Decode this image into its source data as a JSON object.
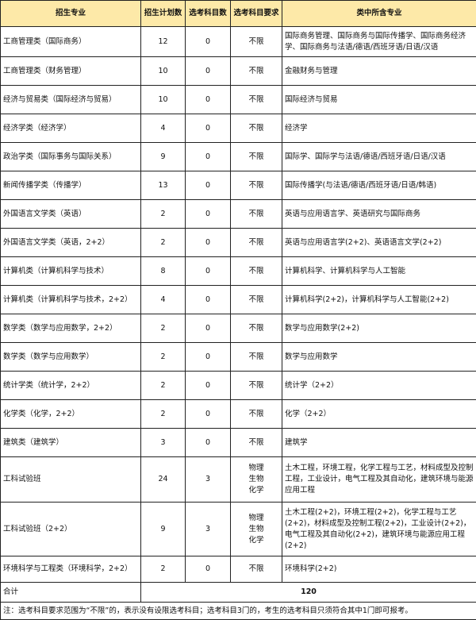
{
  "header": [
    "招生专业",
    "招生计划数",
    "选考科目数",
    "选考科目要求",
    "类中所含专业"
  ],
  "rows": [
    {
      "major": "工商管理类（国际商务）",
      "plan": "12",
      "subjects": "0",
      "requirement": "不限",
      "includes": "国际商务管理、国际商务与国际传播学、国际商务经济学、国际商务与法语/德语/西班牙语/日语/汉语"
    },
    {
      "major": "工商管理类（财务管理）",
      "plan": "10",
      "subjects": "0",
      "requirement": "不限",
      "includes": "金融财务与管理"
    },
    {
      "major": "经济与贸易类（国际经济与贸易）",
      "plan": "10",
      "subjects": "0",
      "requirement": "不限",
      "includes": "国际经济与贸易"
    },
    {
      "major": "经济学类（经济学）",
      "plan": "4",
      "subjects": "0",
      "requirement": "不限",
      "includes": "经济学"
    },
    {
      "major": "政治学类（国际事务与国际关系）",
      "plan": "9",
      "subjects": "0",
      "requirement": "不限",
      "includes": "国际学、国际学与法语/德语/西班牙语/日语/汉语"
    },
    {
      "major": "新闻传播学类（传播学）",
      "plan": "13",
      "subjects": "0",
      "requirement": "不限",
      "includes": "国际传播学(与法语/德语/西班牙语/日语/韩语)"
    },
    {
      "major": "外国语言文学类（英语）",
      "plan": "2",
      "subjects": "0",
      "requirement": "不限",
      "includes": "英语与应用语言学、英语研究与国际商务"
    },
    {
      "major": "外国语言文学类（英语，2+2）",
      "plan": "2",
      "subjects": "0",
      "requirement": "不限",
      "includes": "英语与应用语言学(2+2)、英语语言文学(2+2)"
    },
    {
      "major": "计算机类（计算机科学与技术）",
      "plan": "8",
      "subjects": "0",
      "requirement": "不限",
      "includes": "计算机科学、计算机科学与人工智能"
    },
    {
      "major": "计算机类（计算机科学与技术，2+2）",
      "plan": "4",
      "subjects": "0",
      "requirement": "不限",
      "includes": "计算机科学(2+2)，计算机科学与人工智能(2+2)"
    },
    {
      "major": "数学类（数学与应用数学，2+2）",
      "plan": "2",
      "subjects": "0",
      "requirement": "不限",
      "includes": "数学与应用数学(2+2)"
    },
    {
      "major": "数学类（数学与应用数学）",
      "plan": "2",
      "subjects": "0",
      "requirement": "不限",
      "includes": "数学与应用数学"
    },
    {
      "major": "统计学类（统计学，2+2）",
      "plan": "2",
      "subjects": "0",
      "requirement": "不限",
      "includes": "统计学（2+2）"
    },
    {
      "major": "化学类（化学，2+2）",
      "plan": "2",
      "subjects": "0",
      "requirement": "不限",
      "includes": "化学（2+2）"
    },
    {
      "major": "建筑类（建筑学）",
      "plan": "3",
      "subjects": "0",
      "requirement": "不限",
      "includes": "建筑学"
    },
    {
      "major": "工科试验班",
      "plan": "24",
      "subjects": "3",
      "requirement": "物理\n生物\n化学",
      "includes": "土木工程，环境工程，化学工程与工艺，材料成型及控制工程，工业设计，电气工程及其自动化，建筑环境与能源应用工程"
    },
    {
      "major": "工科试验班（2+2）",
      "plan": "9",
      "subjects": "3",
      "requirement": "物理\n生物\n化学",
      "includes": "土木工程(2+2)，环境工程(2+2)，化学工程与工艺(2+2)，材料成型及控制工程(2+2)，工业设计(2+2)，电气工程及其自动化(2+2)，建筑环境与能源应用工程(2+2)"
    },
    {
      "major": "环境科学与工程类（环境科学，2+2）",
      "plan": "2",
      "subjects": "0",
      "requirement": "不限",
      "includes": "环境科学(2+2)"
    }
  ],
  "total": {
    "label": "合计",
    "value": "120"
  },
  "note": "注：选考科目要求范围为“不限”的，表示没有设限选考科目；选考科目3门的，考生的选考科目只须符合其中1门即可报考。",
  "colors": {
    "header_bg": "#fde9a8",
    "border": "#222222"
  }
}
